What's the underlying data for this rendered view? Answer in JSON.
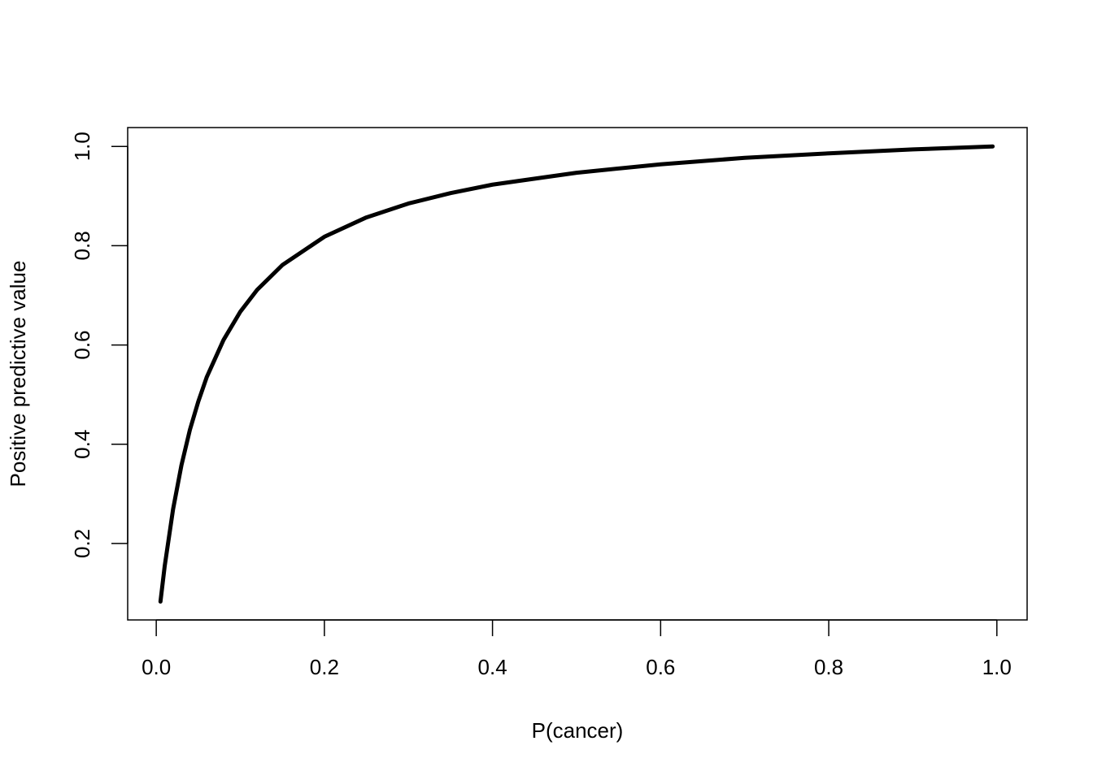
{
  "chart_data": {
    "type": "line",
    "x_label": "P(cancer)",
    "y_label": "Positive predictive value",
    "x": [
      0.005,
      0.01,
      0.02,
      0.03,
      0.04,
      0.05,
      0.06,
      0.08,
      0.1,
      0.12,
      0.15,
      0.2,
      0.25,
      0.3,
      0.35,
      0.4,
      0.5,
      0.6,
      0.7,
      0.8,
      0.9,
      0.995
    ],
    "values": [
      0.083,
      0.154,
      0.269,
      0.358,
      0.429,
      0.486,
      0.535,
      0.61,
      0.667,
      0.711,
      0.761,
      0.818,
      0.857,
      0.885,
      0.906,
      0.923,
      0.947,
      0.964,
      0.977,
      0.986,
      0.994,
      1.0
    ],
    "color": "#000000",
    "xlim": [
      -0.034,
      1.036
    ],
    "ylim": [
      0.046,
      1.038
    ],
    "xticks": [
      {
        "value": 0,
        "label": "0.0"
      },
      0.2,
      0.4,
      0.6,
      0.8,
      {
        "value": 1,
        "label": "1.0"
      }
    ],
    "yticks": [
      0.2,
      0.4,
      0.6,
      0.8,
      {
        "value": 1,
        "label": "1.0"
      }
    ]
  }
}
